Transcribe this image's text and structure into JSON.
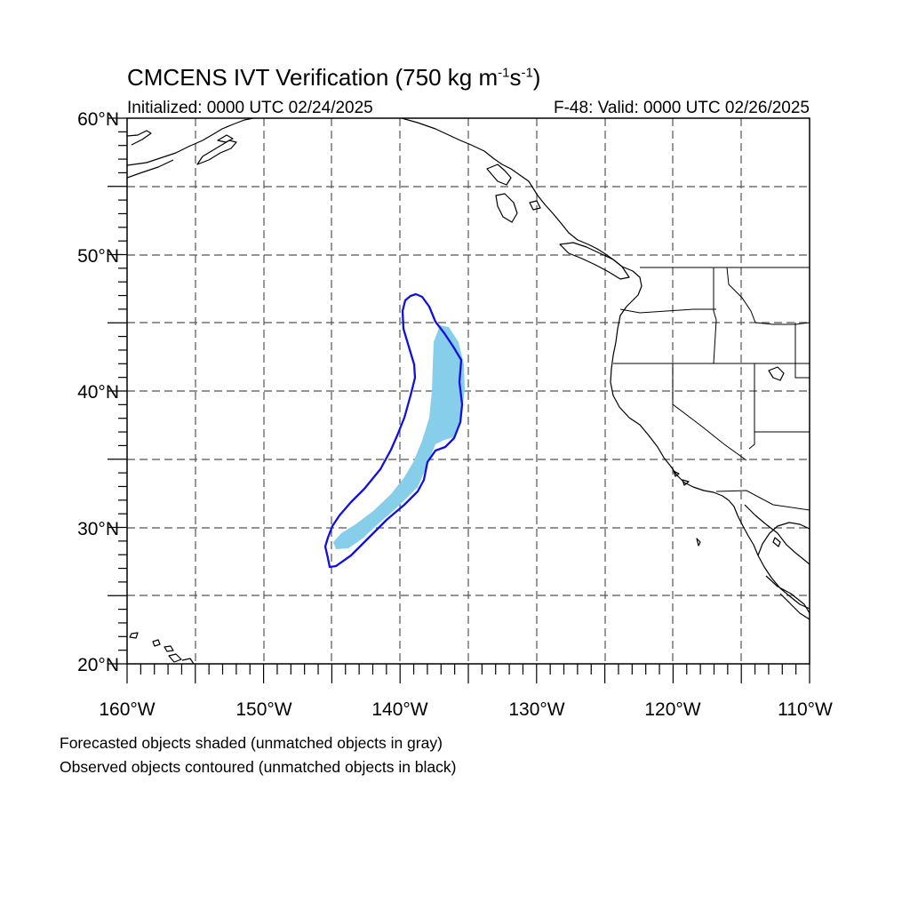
{
  "map": {
    "title_main": "CMCENS IVT Verification (750 kg m",
    "title_exp1": "-1",
    "title_mid": "s",
    "title_exp2": "-1",
    "title_end": ")",
    "initialized": "Initialized: 0000 UTC 02/24/2025",
    "valid": "F-48: Valid: 0000 UTC 02/26/2025",
    "lat_labels": [
      "60°N",
      "50°N",
      "40°N",
      "30°N",
      "20°N"
    ],
    "lon_labels": [
      "160°W",
      "150°W",
      "140°W",
      "130°W",
      "120°W",
      "110°W"
    ],
    "lat_range": [
      20,
      60
    ],
    "lon_range": [
      -160,
      -110
    ],
    "caption_1": "Forecasted objects shaded (unmatched objects in gray)",
    "caption_2": "Observed objects contoured (unmatched objects in black)",
    "colors": {
      "forecast_fill": "#87CEEB",
      "observed_contour": "#1010E0",
      "coastline": "#000000",
      "grid": "#555555"
    }
  }
}
